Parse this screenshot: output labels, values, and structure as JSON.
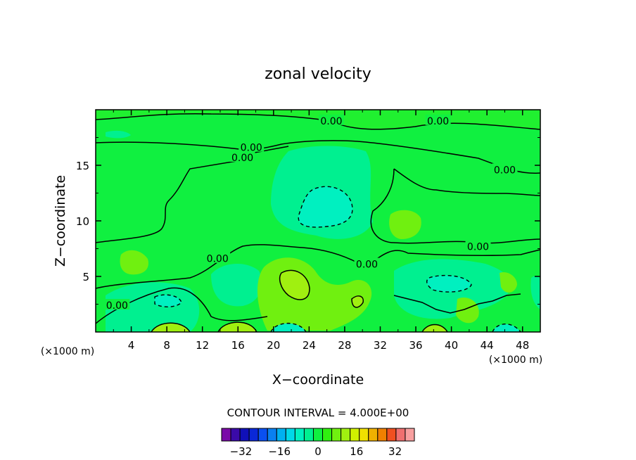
{
  "chart_data": {
    "type": "heatmap",
    "title": "zonal velocity",
    "xlabel": "X−coordinate",
    "ylabel": "Z−coordinate",
    "x_unit": "(×1000 m)",
    "y_unit": "(×1000 m)",
    "xlim": [
      0,
      50
    ],
    "ylim": [
      0,
      20
    ],
    "x_ticks": [
      4,
      8,
      12,
      16,
      20,
      24,
      28,
      32,
      36,
      40,
      44,
      48
    ],
    "y_ticks": [
      5,
      10,
      15
    ],
    "contour_interval_text": "CONTOUR INTERVAL = 4.000E+00",
    "contour_labels": [
      {
        "text": "0.00",
        "x": 26.5,
        "y": 19.0
      },
      {
        "text": "0.00",
        "x": 38.5,
        "y": 19.0
      },
      {
        "text": "0.00",
        "x": 17.5,
        "y": 16.6
      },
      {
        "text": "0.00",
        "x": 16.5,
        "y": 15.7
      },
      {
        "text": "0.00",
        "x": 46.0,
        "y": 14.6
      },
      {
        "text": "0.00",
        "x": 43.0,
        "y": 7.7
      },
      {
        "text": "0.00",
        "x": 13.7,
        "y": 6.6
      },
      {
        "text": "0.00",
        "x": 30.5,
        "y": 6.1
      },
      {
        "text": "0.00",
        "x": 2.4,
        "y": 2.4
      }
    ],
    "colorbar": {
      "levels": [
        -40,
        -36,
        -32,
        -28,
        -24,
        -20,
        -16,
        -12,
        -8,
        -4,
        0,
        4,
        8,
        12,
        16,
        20,
        24,
        28,
        32,
        36,
        40
      ],
      "colors": [
        "#7a0aa8",
        "#3a0aa8",
        "#1010b8",
        "#0a28d8",
        "#0a50f0",
        "#0a80f0",
        "#00b0f0",
        "#00d8e8",
        "#00f0c0",
        "#00f090",
        "#10f040",
        "#30f010",
        "#70f010",
        "#a0f010",
        "#d0f000",
        "#f0e000",
        "#f0b000",
        "#f08000",
        "#f05020",
        "#f07070",
        "#f8a0a0"
      ],
      "tick_labels": [
        "−32",
        "−16",
        "0",
        "16",
        "32"
      ],
      "tick_values": [
        -32,
        -16,
        0,
        16,
        32
      ]
    }
  }
}
